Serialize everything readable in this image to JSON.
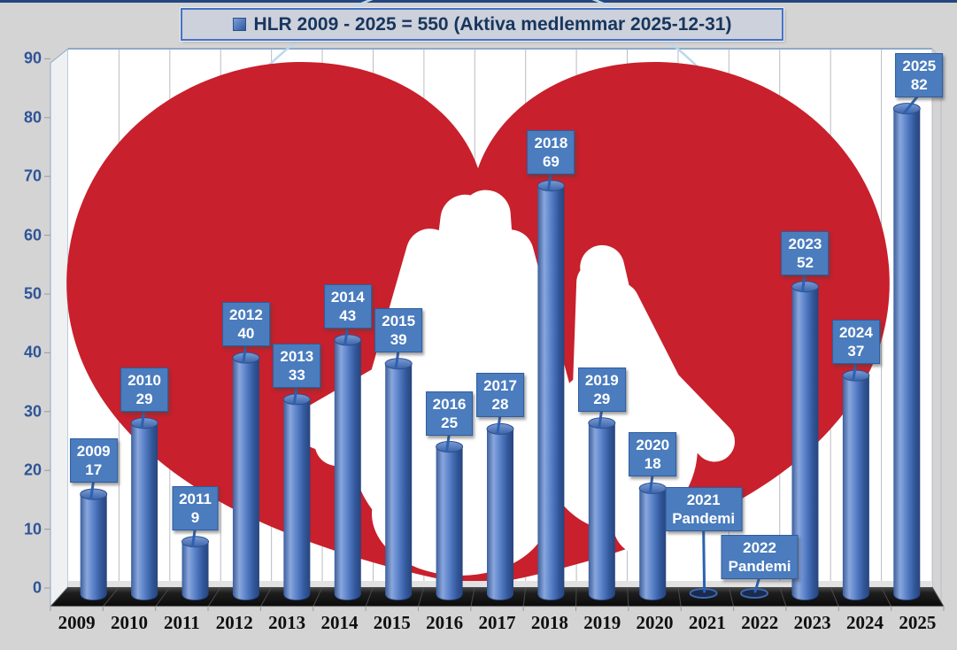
{
  "chart_data": {
    "type": "bar",
    "style": "3d-cylinders",
    "title": "HLR 2009 - 2025 = 550 (Aktiva medlemmar 2025-12-31)",
    "legend_position": "top-center",
    "categories": [
      "2009",
      "2010",
      "2011",
      "2012",
      "2013",
      "2014",
      "2015",
      "2016",
      "2017",
      "2018",
      "2019",
      "2020",
      "2021",
      "2022",
      "2023",
      "2024",
      "2025"
    ],
    "series": [
      {
        "name": "HLR",
        "values": [
          17,
          29,
          9,
          40,
          33,
          43,
          39,
          25,
          28,
          69,
          29,
          18,
          0,
          0,
          52,
          37,
          82
        ]
      }
    ],
    "total": 550,
    "bar_labels": [
      {
        "line1": "2009",
        "line2": "17"
      },
      {
        "line1": "2010",
        "line2": "29"
      },
      {
        "line1": "2011",
        "line2": "9"
      },
      {
        "line1": "2012",
        "line2": "40"
      },
      {
        "line1": "2013",
        "line2": "33"
      },
      {
        "line1": "2014",
        "line2": "43"
      },
      {
        "line1": "2015",
        "line2": "39"
      },
      {
        "line1": "2016",
        "line2": "25"
      },
      {
        "line1": "2017",
        "line2": "28"
      },
      {
        "line1": "2018",
        "line2": "69"
      },
      {
        "line1": "2019",
        "line2": "29"
      },
      {
        "line1": "2020",
        "line2": "18"
      },
      {
        "line1": "2021",
        "line2": "Pandemi",
        "lift": 72
      },
      {
        "line1": "2022",
        "line2": "Pandemi",
        "lift": 18,
        "dx": 6
      },
      {
        "line1": "2023",
        "line2": "52"
      },
      {
        "line1": "2024",
        "line2": "37"
      },
      {
        "line1": "2025",
        "line2": "82",
        "dx": 14
      }
    ],
    "annotations": [
      {
        "category": "2021",
        "text": "Pandemi"
      },
      {
        "category": "2022",
        "text": "Pandemi"
      }
    ],
    "y_ticks": [
      0,
      10,
      20,
      30,
      40,
      50,
      60,
      70,
      80,
      90
    ],
    "ylim": [
      0,
      90
    ],
    "grid": "vertical category gridlines only",
    "background_motif": "red heart with two white handprints (HLR/CPR symbol) and light blue arc"
  },
  "colors": {
    "page_background": "#d4d4d4",
    "top_strip": "#24457e",
    "title_text": "#17365d",
    "title_box_bg": "#cdd1dc",
    "title_box_border": "#4472c4",
    "bar_main": "#4472c4",
    "bar_highlight": "#8aa6dc",
    "bar_dark": "#27457c",
    "label_box_bg": "#4a7cbe",
    "label_box_border": "#2f5c9e",
    "label_text": "#ffffff",
    "heart_red": "#c8202c",
    "handprint": "#ffffff",
    "arc_light_blue": "#bcd9ec",
    "y_axis_text": "#2f5496",
    "x_axis_text": "#0f0f0f",
    "floor_black": "#111111",
    "wall_border": "#8fa8c8",
    "gridline": "#b9bcc4"
  }
}
